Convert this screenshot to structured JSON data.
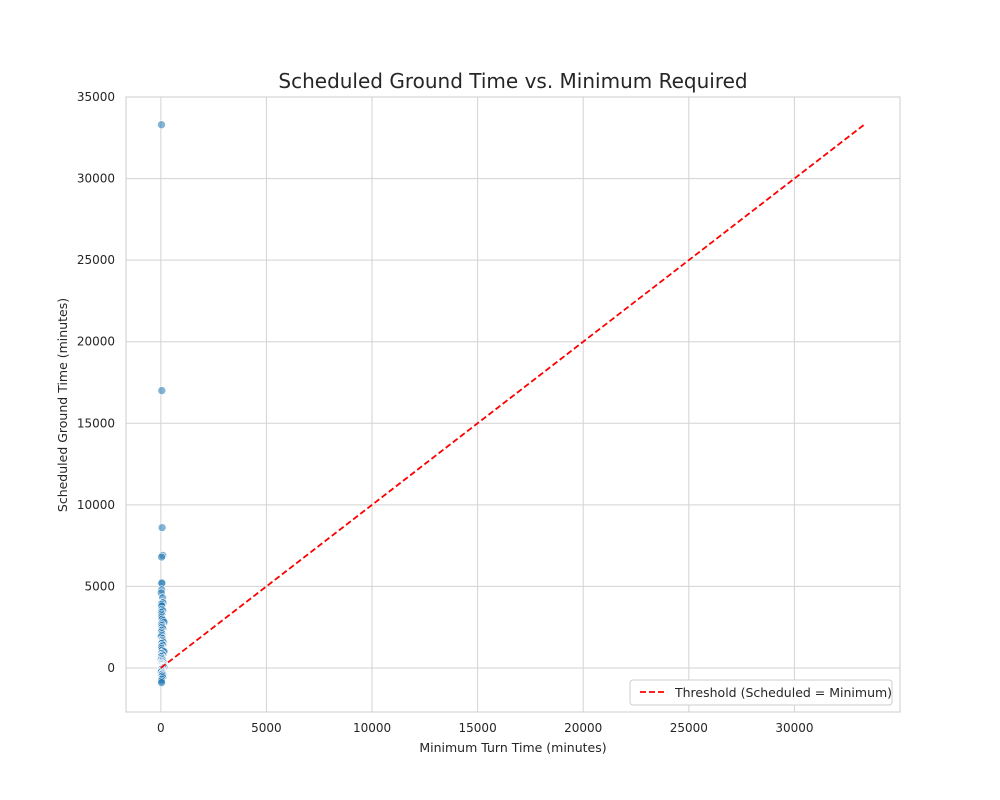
{
  "chart_data": {
    "type": "scatter",
    "title": "Scheduled Ground Time vs. Minimum Required",
    "xlabel": "Minimum Turn Time (minutes)",
    "ylabel": "Scheduled Ground Time (minutes)",
    "xlim": [
      -1650,
      35000
    ],
    "ylim": [
      -2700,
      35000
    ],
    "xticks": [
      0,
      5000,
      10000,
      15000,
      20000,
      25000,
      30000
    ],
    "yticks": [
      0,
      5000,
      10000,
      15000,
      20000,
      25000,
      30000,
      35000
    ],
    "grid": true,
    "legend_position": "lower-right",
    "colors": {
      "points": "#1f77b4",
      "threshold": "#ff0000",
      "grid": "#d3d3d3",
      "spine": "#cccccc"
    },
    "series": [
      {
        "name": "",
        "kind": "points",
        "x": [
          30,
          45,
          60,
          90,
          35,
          25,
          50,
          40,
          20,
          80,
          70,
          55,
          100,
          30,
          45,
          60,
          90,
          25,
          35,
          50,
          40,
          75,
          65,
          120,
          150,
          30,
          45,
          60,
          90,
          35,
          25,
          50,
          40,
          20,
          80,
          70,
          55,
          100,
          30,
          45,
          60,
          90,
          25,
          35,
          50,
          40,
          75,
          65,
          120,
          150,
          30,
          45,
          60,
          90,
          35,
          25,
          50,
          40,
          20,
          80,
          70,
          55,
          100,
          30,
          45,
          60,
          90,
          25,
          35,
          50,
          40,
          75,
          65,
          120,
          150,
          30,
          45,
          60,
          90,
          35,
          25,
          50,
          40,
          20,
          80,
          70,
          55,
          100,
          60,
          90,
          45,
          30,
          35
        ],
        "y": [
          33300,
          17000,
          8600,
          6900,
          6800,
          5200,
          5200,
          4800,
          4600,
          4300,
          4000,
          4000,
          4000,
          3900,
          3800,
          3600,
          3500,
          3400,
          3300,
          3200,
          3100,
          3000,
          3000,
          2900,
          2800,
          2700,
          2600,
          2500,
          2400,
          2300,
          2200,
          2100,
          2000,
          1900,
          1800,
          1700,
          1600,
          1600,
          1500,
          1500,
          1400,
          1400,
          1300,
          1300,
          1200,
          1200,
          1100,
          1100,
          1000,
          1000,
          900,
          900,
          800,
          800,
          700,
          700,
          600,
          600,
          500,
          500,
          400,
          400,
          350,
          300,
          300,
          250,
          200,
          200,
          150,
          120,
          100,
          80,
          60,
          50,
          40,
          30,
          20,
          10,
          0,
          -50,
          -100,
          -150,
          -200,
          -250,
          -300,
          -350,
          -400,
          -450,
          -500,
          -600,
          -700,
          -800,
          -900
        ]
      },
      {
        "name": "Threshold (Scheduled = Minimum)",
        "kind": "line",
        "style": "dashed",
        "x": [
          0,
          33300
        ],
        "y": [
          0,
          33300
        ]
      }
    ]
  }
}
